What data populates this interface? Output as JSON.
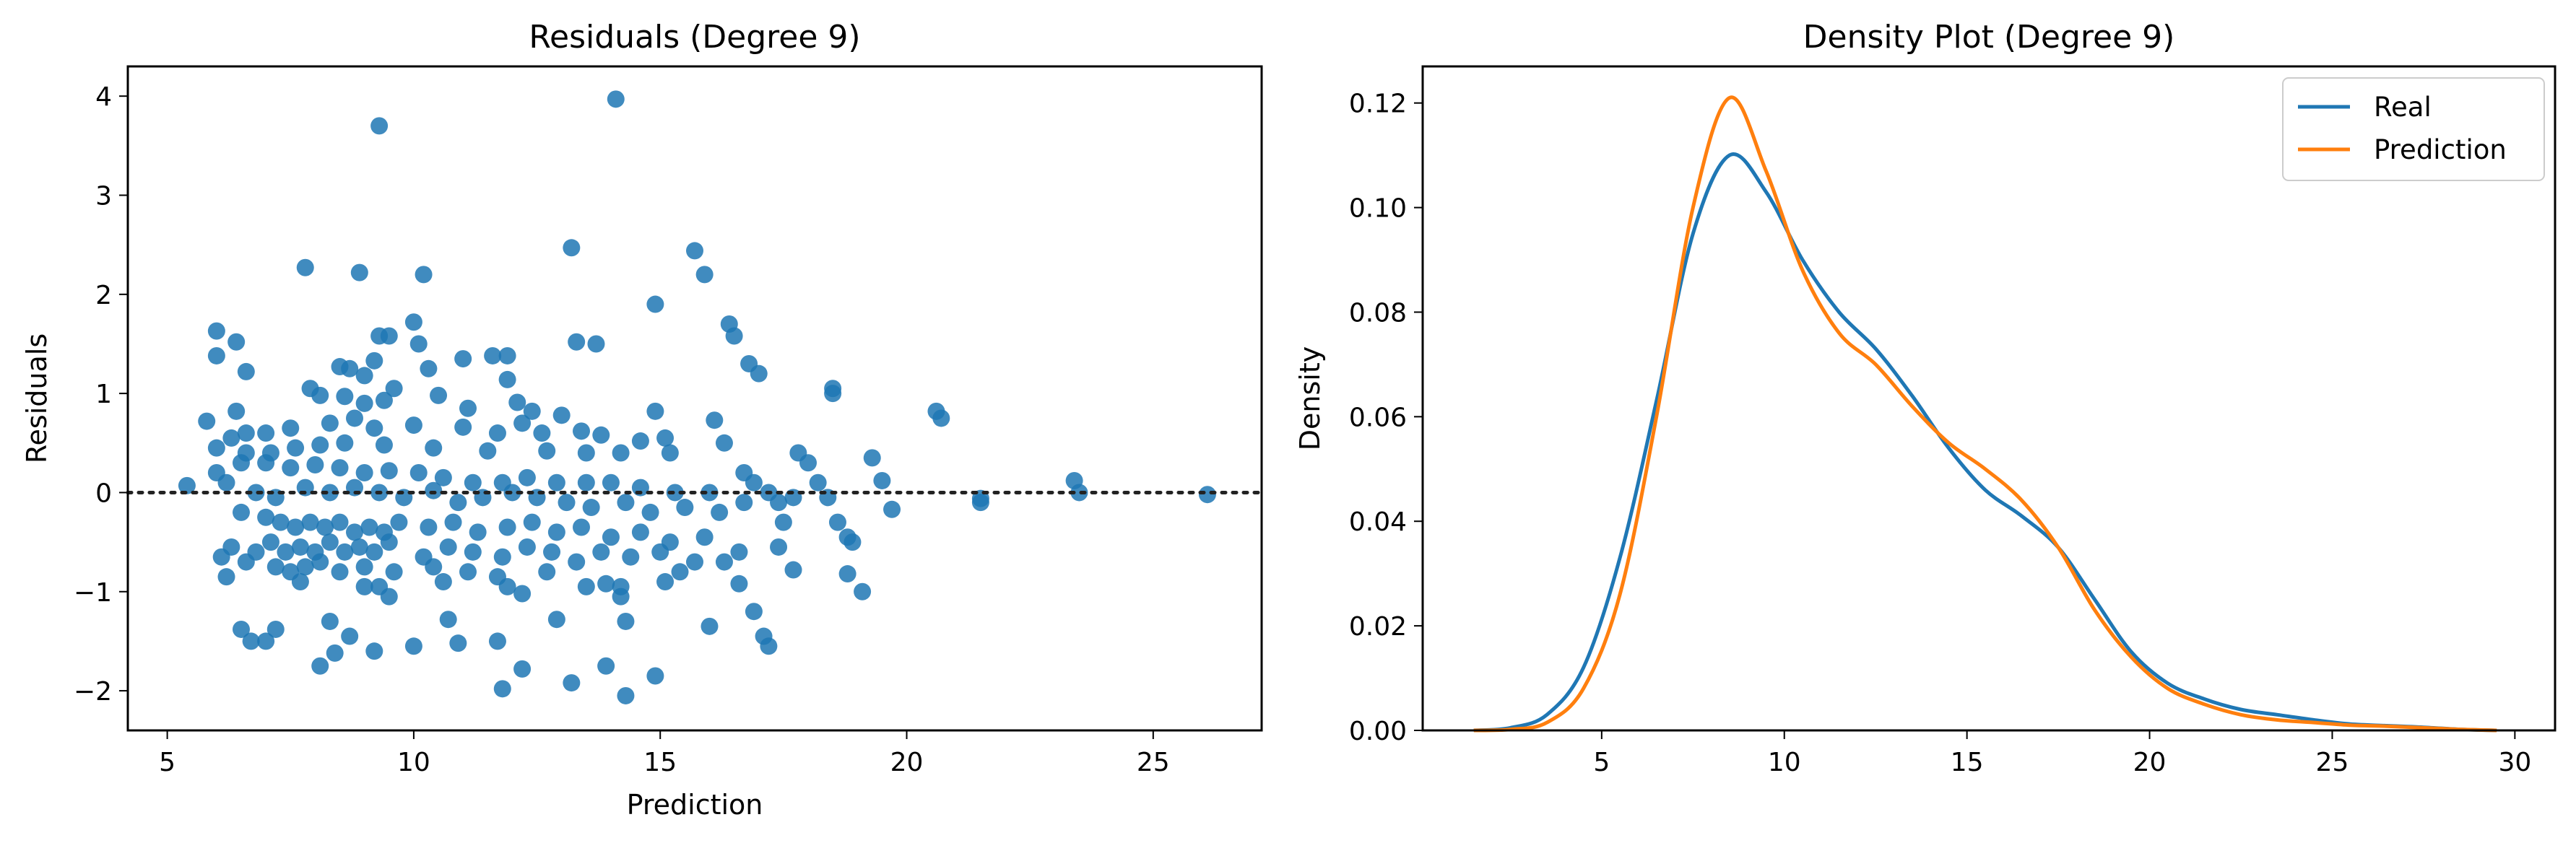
{
  "colors": {
    "blue": "#1f77b4",
    "orange": "#ff7f0e"
  },
  "chart_data": [
    {
      "type": "scatter",
      "title": "Residuals (Degree 9)",
      "xlabel": "Prediction",
      "ylabel": "Residuals",
      "xlim": [
        4.2,
        27.2
      ],
      "ylim": [
        -2.4,
        4.3
      ],
      "xticks": [
        5,
        10,
        15,
        20,
        25
      ],
      "yticks": [
        -2,
        -1,
        0,
        1,
        2,
        3,
        4
      ],
      "reference_line": {
        "y": 0,
        "style": "dotted"
      },
      "points": [
        [
          9.3,
          3.7
        ],
        [
          14.1,
          3.97
        ],
        [
          7.8,
          2.27
        ],
        [
          8.9,
          2.22
        ],
        [
          10.2,
          2.2
        ],
        [
          13.2,
          2.47
        ],
        [
          15.7,
          2.44
        ],
        [
          15.9,
          2.2
        ],
        [
          14.9,
          1.9
        ],
        [
          10,
          1.72
        ],
        [
          6,
          1.63
        ],
        [
          6.4,
          1.52
        ],
        [
          9.5,
          1.58
        ],
        [
          13.3,
          1.52
        ],
        [
          13.7,
          1.5
        ],
        [
          10.1,
          1.5
        ],
        [
          9.3,
          1.58
        ],
        [
          6,
          1.38
        ],
        [
          6.6,
          1.22
        ],
        [
          9.2,
          1.33
        ],
        [
          11,
          1.35
        ],
        [
          11.6,
          1.38
        ],
        [
          11.9,
          1.38
        ],
        [
          10.3,
          1.25
        ],
        [
          8.5,
          1.27
        ],
        [
          8.7,
          1.25
        ],
        [
          16.4,
          1.7
        ],
        [
          16.5,
          1.58
        ],
        [
          16.8,
          1.3
        ],
        [
          17,
          1.2
        ],
        [
          9,
          1.18
        ],
        [
          11.9,
          1.14
        ],
        [
          7.9,
          1.05
        ],
        [
          8.1,
          0.98
        ],
        [
          8.6,
          0.97
        ],
        [
          9.6,
          1.05
        ],
        [
          9.4,
          0.93
        ],
        [
          10.5,
          0.98
        ],
        [
          11.1,
          0.85
        ],
        [
          12.1,
          0.91
        ],
        [
          12.4,
          0.82
        ],
        [
          13,
          0.78
        ],
        [
          13.4,
          0.62
        ],
        [
          18.5,
          1.05
        ],
        [
          18.5,
          1
        ],
        [
          20.6,
          0.82
        ],
        [
          20.7,
          0.75
        ],
        [
          16.1,
          0.73
        ],
        [
          14.9,
          0.82
        ],
        [
          9,
          0.9
        ],
        [
          6.4,
          0.82
        ],
        [
          5.8,
          0.72
        ],
        [
          6.3,
          0.55
        ],
        [
          6.6,
          0.6
        ],
        [
          7,
          0.6
        ],
        [
          7.5,
          0.65
        ],
        [
          8.3,
          0.7
        ],
        [
          8.8,
          0.75
        ],
        [
          9.2,
          0.65
        ],
        [
          10,
          0.68
        ],
        [
          11,
          0.66
        ],
        [
          11.7,
          0.6
        ],
        [
          12.2,
          0.7
        ],
        [
          12.6,
          0.6
        ],
        [
          13.8,
          0.58
        ],
        [
          14.6,
          0.52
        ],
        [
          15.1,
          0.55
        ],
        [
          16.3,
          0.5
        ],
        [
          17.8,
          0.4
        ],
        [
          18,
          0.3
        ],
        [
          19.3,
          0.35
        ],
        [
          6,
          0.45
        ],
        [
          6.6,
          0.4
        ],
        [
          7.1,
          0.4
        ],
        [
          7.6,
          0.45
        ],
        [
          8.1,
          0.48
        ],
        [
          8.6,
          0.5
        ],
        [
          9.4,
          0.48
        ],
        [
          10.4,
          0.45
        ],
        [
          11.5,
          0.42
        ],
        [
          12.7,
          0.42
        ],
        [
          13.5,
          0.4
        ],
        [
          14.2,
          0.4
        ],
        [
          15.2,
          0.4
        ],
        [
          16.7,
          0.2
        ],
        [
          16.9,
          0.1
        ],
        [
          17.2,
          0
        ],
        [
          17.4,
          -0.1
        ],
        [
          18.2,
          0.1
        ],
        [
          18.4,
          -0.05
        ],
        [
          19.5,
          0.12
        ],
        [
          19.7,
          -0.17
        ],
        [
          5.4,
          0.07
        ],
        [
          6,
          0.2
        ],
        [
          6.5,
          0.3
        ],
        [
          7,
          0.3
        ],
        [
          7.5,
          0.25
        ],
        [
          8,
          0.28
        ],
        [
          8.5,
          0.25
        ],
        [
          9,
          0.2
        ],
        [
          9.5,
          0.22
        ],
        [
          10.1,
          0.2
        ],
        [
          10.6,
          0.15
        ],
        [
          11.2,
          0.1
        ],
        [
          11.8,
          0.1
        ],
        [
          12.3,
          0.15
        ],
        [
          12.9,
          0.1
        ],
        [
          13.5,
          0.1
        ],
        [
          14,
          0.1
        ],
        [
          14.6,
          0.05
        ],
        [
          15.3,
          0
        ],
        [
          16,
          0
        ],
        [
          16.7,
          -0.1
        ],
        [
          17.7,
          -0.05
        ],
        [
          18.6,
          -0.3
        ],
        [
          21.5,
          -0.06
        ],
        [
          21.5,
          -0.1
        ],
        [
          23.4,
          0.12
        ],
        [
          23.5,
          0
        ],
        [
          26.1,
          -0.02
        ],
        [
          6.2,
          0.1
        ],
        [
          6.8,
          0
        ],
        [
          7.2,
          -0.05
        ],
        [
          7.8,
          0.05
        ],
        [
          8.3,
          0
        ],
        [
          8.8,
          0.05
        ],
        [
          9.3,
          0
        ],
        [
          9.8,
          -0.05
        ],
        [
          10.4,
          0.02
        ],
        [
          10.9,
          -0.1
        ],
        [
          11.4,
          -0.05
        ],
        [
          12,
          0
        ],
        [
          12.5,
          -0.05
        ],
        [
          13.1,
          -0.1
        ],
        [
          13.6,
          -0.15
        ],
        [
          14.3,
          -0.1
        ],
        [
          14.8,
          -0.2
        ],
        [
          15.5,
          -0.15
        ],
        [
          16.2,
          -0.2
        ],
        [
          17.5,
          -0.3
        ],
        [
          18.8,
          -0.45
        ],
        [
          6.5,
          -0.2
        ],
        [
          7,
          -0.25
        ],
        [
          7.3,
          -0.3
        ],
        [
          7.6,
          -0.35
        ],
        [
          7.9,
          -0.3
        ],
        [
          8.2,
          -0.35
        ],
        [
          8.5,
          -0.3
        ],
        [
          8.8,
          -0.4
        ],
        [
          9.1,
          -0.35
        ],
        [
          9.4,
          -0.4
        ],
        [
          9.7,
          -0.3
        ],
        [
          10.3,
          -0.35
        ],
        [
          10.8,
          -0.3
        ],
        [
          11.3,
          -0.4
        ],
        [
          11.9,
          -0.35
        ],
        [
          12.4,
          -0.3
        ],
        [
          12.9,
          -0.4
        ],
        [
          13.4,
          -0.35
        ],
        [
          14,
          -0.45
        ],
        [
          14.6,
          -0.4
        ],
        [
          15.2,
          -0.5
        ],
        [
          15.9,
          -0.45
        ],
        [
          16.6,
          -0.6
        ],
        [
          17.4,
          -0.55
        ],
        [
          18.9,
          -0.5
        ],
        [
          6.3,
          -0.55
        ],
        [
          6.8,
          -0.6
        ],
        [
          7.1,
          -0.5
        ],
        [
          7.4,
          -0.6
        ],
        [
          7.7,
          -0.55
        ],
        [
          8,
          -0.6
        ],
        [
          8.3,
          -0.5
        ],
        [
          8.6,
          -0.6
        ],
        [
          8.9,
          -0.55
        ],
        [
          9.2,
          -0.6
        ],
        [
          9.5,
          -0.5
        ],
        [
          10.2,
          -0.65
        ],
        [
          10.7,
          -0.55
        ],
        [
          11.2,
          -0.6
        ],
        [
          11.8,
          -0.65
        ],
        [
          12.3,
          -0.55
        ],
        [
          12.8,
          -0.6
        ],
        [
          13.3,
          -0.7
        ],
        [
          13.8,
          -0.6
        ],
        [
          14.4,
          -0.65
        ],
        [
          15,
          -0.6
        ],
        [
          15.7,
          -0.7
        ],
        [
          16.3,
          -0.7
        ],
        [
          17.7,
          -0.78
        ],
        [
          6.1,
          -0.65
        ],
        [
          6.6,
          -0.7
        ],
        [
          7.2,
          -0.75
        ],
        [
          7.5,
          -0.8
        ],
        [
          7.8,
          -0.75
        ],
        [
          8.1,
          -0.7
        ],
        [
          8.5,
          -0.8
        ],
        [
          9,
          -0.75
        ],
        [
          9.6,
          -0.8
        ],
        [
          10.4,
          -0.75
        ],
        [
          11.1,
          -0.8
        ],
        [
          11.7,
          -0.85
        ],
        [
          12.7,
          -0.8
        ],
        [
          13.5,
          -0.95
        ],
        [
          14.2,
          -0.95
        ],
        [
          15.4,
          -0.8
        ],
        [
          16.6,
          -0.92
        ],
        [
          18.8,
          -0.82
        ],
        [
          19.1,
          -1
        ],
        [
          6.2,
          -0.85
        ],
        [
          7.7,
          -0.9
        ],
        [
          9,
          -0.95
        ],
        [
          9.3,
          -0.95
        ],
        [
          10.6,
          -0.9
        ],
        [
          11.9,
          -0.95
        ],
        [
          13.9,
          -0.92
        ],
        [
          15.1,
          -0.9
        ],
        [
          9.5,
          -1.05
        ],
        [
          12.2,
          -1.02
        ],
        [
          14.2,
          -1.05
        ],
        [
          16.9,
          -1.2
        ],
        [
          6.5,
          -1.38
        ],
        [
          7.2,
          -1.38
        ],
        [
          8.3,
          -1.3
        ],
        [
          8.7,
          -1.45
        ],
        [
          10.7,
          -1.28
        ],
        [
          12.9,
          -1.28
        ],
        [
          14.3,
          -1.3
        ],
        [
          16,
          -1.35
        ],
        [
          17.1,
          -1.45
        ],
        [
          17.2,
          -1.55
        ],
        [
          6.7,
          -1.5
        ],
        [
          7,
          -1.5
        ],
        [
          8.1,
          -1.75
        ],
        [
          8.4,
          -1.62
        ],
        [
          9.2,
          -1.6
        ],
        [
          10,
          -1.55
        ],
        [
          10.9,
          -1.52
        ],
        [
          11.7,
          -1.5
        ],
        [
          12.2,
          -1.78
        ],
        [
          13.9,
          -1.75
        ],
        [
          14.9,
          -1.85
        ],
        [
          11.8,
          -1.98
        ],
        [
          13.2,
          -1.92
        ],
        [
          14.3,
          -2.05
        ]
      ]
    },
    {
      "type": "line",
      "title": "Density Plot (Degree 9)",
      "xlabel": "",
      "ylabel": "Density",
      "xlim": [
        0.1,
        31.1
      ],
      "ylim": [
        0,
        0.127
      ],
      "xticks": [
        5,
        10,
        15,
        20,
        25,
        30
      ],
      "yticks": [
        0.0,
        0.02,
        0.04,
        0.06,
        0.08,
        0.1,
        0.12
      ],
      "legend": {
        "placement": "top-right"
      },
      "series": [
        {
          "name": "Real",
          "color": "#1f77b4",
          "points": [
            [
              1.5,
              0
            ],
            [
              2.5,
              0.0005
            ],
            [
              3.5,
              0.003
            ],
            [
              4.5,
              0.012
            ],
            [
              5.5,
              0.033
            ],
            [
              6.5,
              0.063
            ],
            [
              7.5,
              0.095
            ],
            [
              8.5,
              0.11
            ],
            [
              9.5,
              0.103
            ],
            [
              10.5,
              0.09
            ],
            [
              11.5,
              0.08
            ],
            [
              12.5,
              0.073
            ],
            [
              13.5,
              0.064
            ],
            [
              14.5,
              0.054
            ],
            [
              15.5,
              0.046
            ],
            [
              16.5,
              0.041
            ],
            [
              17.5,
              0.035
            ],
            [
              18.5,
              0.025
            ],
            [
              19.5,
              0.015
            ],
            [
              20.5,
              0.009
            ],
            [
              21.5,
              0.006
            ],
            [
              22.5,
              0.004
            ],
            [
              23.5,
              0.003
            ],
            [
              24.5,
              0.002
            ],
            [
              25.5,
              0.0012
            ],
            [
              26.5,
              0.0009
            ],
            [
              27.5,
              0.0006
            ],
            [
              28.5,
              0.0002
            ],
            [
              29.5,
              0
            ]
          ]
        },
        {
          "name": "Prediction",
          "color": "#ff7f0e",
          "points": [
            [
              1.5,
              0
            ],
            [
              2.5,
              0.0002
            ],
            [
              3.5,
              0.0015
            ],
            [
              4.5,
              0.008
            ],
            [
              5.5,
              0.026
            ],
            [
              6.5,
              0.06
            ],
            [
              7.5,
              0.1
            ],
            [
              8.5,
              0.121
            ],
            [
              9.5,
              0.107
            ],
            [
              10.5,
              0.088
            ],
            [
              11.5,
              0.076
            ],
            [
              12.5,
              0.07
            ],
            [
              13.5,
              0.062
            ],
            [
              14.5,
              0.055
            ],
            [
              15.5,
              0.05
            ],
            [
              16.5,
              0.044
            ],
            [
              17.5,
              0.035
            ],
            [
              18.5,
              0.023
            ],
            [
              19.5,
              0.014
            ],
            [
              20.5,
              0.008
            ],
            [
              21.5,
              0.005
            ],
            [
              22.5,
              0.003
            ],
            [
              23.5,
              0.002
            ],
            [
              24.5,
              0.0015
            ],
            [
              25.5,
              0.001
            ],
            [
              26.5,
              0.0008
            ],
            [
              27.5,
              0.0005
            ],
            [
              28.5,
              0.0002
            ],
            [
              29.5,
              0
            ]
          ]
        }
      ]
    }
  ]
}
